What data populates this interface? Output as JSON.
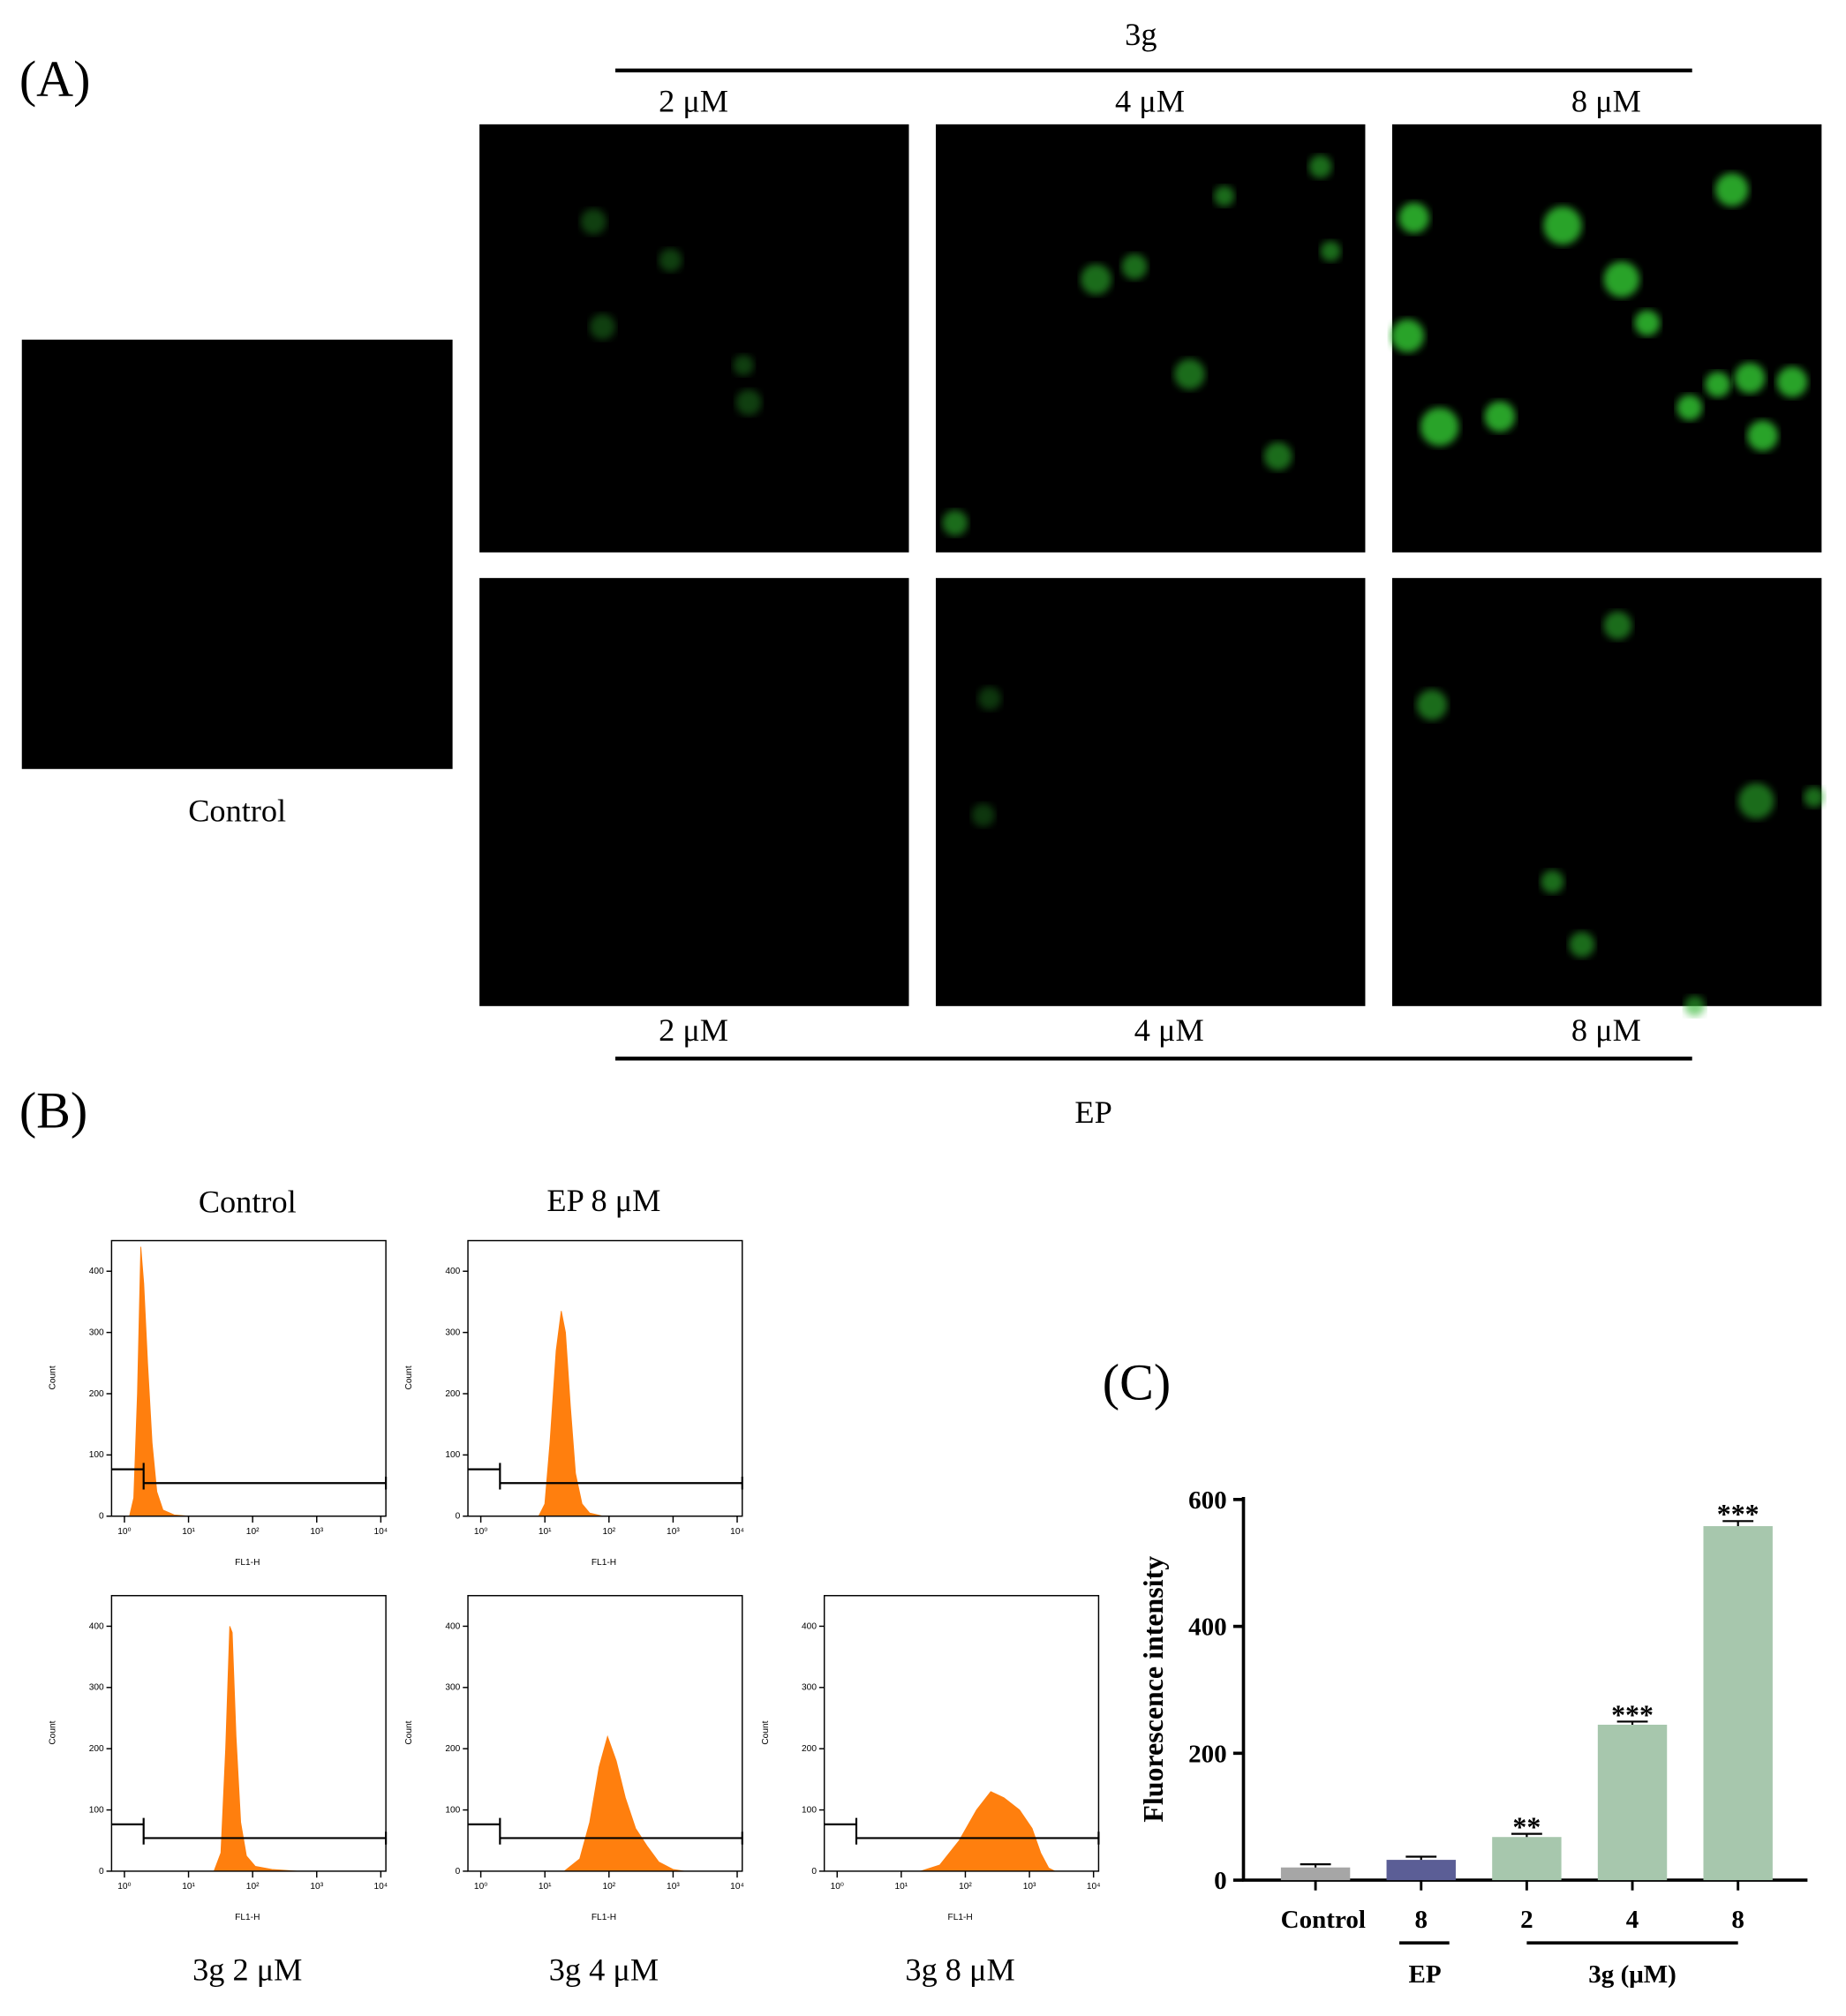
{
  "panel_labels": [
    "(A)",
    "(B)",
    "(C)"
  ],
  "panel_a": {
    "group_top": "3g",
    "top_labels": [
      "2 μM",
      "4 μM",
      "8 μM"
    ],
    "control_label": "Control",
    "bottom_labels": [
      "2 μM",
      "4 μM",
      "8 μM"
    ],
    "group_bottom": "EP"
  },
  "chart_data": [
    {
      "type": "area",
      "title": "Control",
      "xlabel": "FL1-H",
      "ylabel": "Count",
      "xscale": "log",
      "color": "#ff7f0e",
      "xlim": [
        0.63,
        12000
      ],
      "ylim": [
        0,
        450
      ],
      "xticks": [
        {
          "value": 1,
          "label": "10⁰"
        },
        {
          "value": 10,
          "label": "10¹"
        },
        {
          "value": 100,
          "label": "10²"
        },
        {
          "value": 1000,
          "label": "10³"
        },
        {
          "value": 10000,
          "label": "10⁴"
        }
      ],
      "yticks": [
        0,
        100,
        200,
        300,
        400
      ],
      "x": [
        1.2,
        1.4,
        1.6,
        1.8,
        2.0,
        2.3,
        2.7,
        3.2,
        4,
        6,
        10
      ],
      "values": [
        0,
        30,
        200,
        440,
        380,
        250,
        120,
        40,
        10,
        2,
        0
      ]
    },
    {
      "type": "area",
      "title": "EP 8 μM",
      "xlabel": "FL1-H",
      "ylabel": "Count",
      "xscale": "log",
      "color": "#ff7f0e",
      "xlim": [
        0.63,
        12000
      ],
      "ylim": [
        0,
        450
      ],
      "xticks": [
        {
          "value": 1,
          "label": "10⁰"
        },
        {
          "value": 10,
          "label": "10¹"
        },
        {
          "value": 100,
          "label": "10²"
        },
        {
          "value": 1000,
          "label": "10³"
        },
        {
          "value": 10000,
          "label": "10⁴"
        }
      ],
      "yticks": [
        0,
        100,
        200,
        300,
        400
      ],
      "x": [
        8,
        10,
        12,
        15,
        18,
        21,
        25,
        30,
        38,
        50,
        80
      ],
      "values": [
        0,
        20,
        120,
        270,
        335,
        300,
        180,
        70,
        20,
        5,
        0
      ]
    },
    {
      "type": "area",
      "title": "3g 2 μM",
      "xlabel": "FL1-H",
      "ylabel": "Count",
      "xscale": "log",
      "color": "#ff7f0e",
      "xlim": [
        0.63,
        12000
      ],
      "ylim": [
        0,
        450
      ],
      "xticks": [
        {
          "value": 1,
          "label": "10⁰"
        },
        {
          "value": 10,
          "label": "10¹"
        },
        {
          "value": 100,
          "label": "10²"
        },
        {
          "value": 1000,
          "label": "10³"
        },
        {
          "value": 10000,
          "label": "10⁴"
        }
      ],
      "yticks": [
        0,
        100,
        200,
        300,
        400
      ],
      "x": [
        25,
        32,
        38,
        44,
        48,
        55,
        65,
        80,
        110,
        200,
        500
      ],
      "values": [
        0,
        30,
        200,
        400,
        390,
        220,
        80,
        25,
        8,
        3,
        0
      ]
    },
    {
      "type": "area",
      "title": "3g 4 μM",
      "xlabel": "FL1-H",
      "ylabel": "Count",
      "xscale": "log",
      "color": "#ff7f0e",
      "xlim": [
        0.63,
        12000
      ],
      "ylim": [
        0,
        450
      ],
      "xticks": [
        {
          "value": 1,
          "label": "10⁰"
        },
        {
          "value": 10,
          "label": "10¹"
        },
        {
          "value": 100,
          "label": "10²"
        },
        {
          "value": 1000,
          "label": "10³"
        },
        {
          "value": 10000,
          "label": "10⁴"
        }
      ],
      "yticks": [
        0,
        100,
        200,
        300,
        400
      ],
      "x": [
        20,
        35,
        50,
        70,
        95,
        130,
        180,
        260,
        400,
        600,
        1000,
        1500
      ],
      "values": [
        0,
        20,
        80,
        170,
        220,
        180,
        120,
        70,
        40,
        15,
        3,
        0
      ]
    },
    {
      "type": "area",
      "title": "3g 8 μM",
      "xlabel": "FL1-H",
      "ylabel": "Count",
      "xscale": "log",
      "color": "#ff7f0e",
      "xlim": [
        0.63,
        12000
      ],
      "ylim": [
        0,
        450
      ],
      "xticks": [
        {
          "value": 1,
          "label": "10⁰"
        },
        {
          "value": 10,
          "label": "10¹"
        },
        {
          "value": 100,
          "label": "10²"
        },
        {
          "value": 1000,
          "label": "10³"
        },
        {
          "value": 10000,
          "label": "10⁴"
        }
      ],
      "yticks": [
        0,
        100,
        200,
        300,
        400
      ],
      "x": [
        20,
        40,
        80,
        150,
        250,
        400,
        700,
        1100,
        1500,
        2000,
        2500
      ],
      "values": [
        0,
        10,
        50,
        100,
        130,
        120,
        100,
        70,
        30,
        5,
        0
      ]
    },
    {
      "type": "bar",
      "ylabel": "Fluorescence intensity",
      "categories": [
        "Control",
        "8",
        "2",
        "4",
        "8"
      ],
      "values": [
        20,
        32,
        68,
        245,
        558
      ],
      "errors": [
        5,
        5,
        5,
        5,
        8
      ],
      "colors": [
        "#a6a6a6",
        "#5b5e96",
        "#a7c7ad",
        "#a7c7ad",
        "#a7c7ad"
      ],
      "significance": [
        null,
        null,
        "**",
        "***",
        "***"
      ],
      "group_labels": [
        "EP",
        "3g (μM)"
      ],
      "ylim": [
        0,
        600
      ],
      "yticks": [
        0,
        200,
        400,
        600
      ]
    }
  ]
}
